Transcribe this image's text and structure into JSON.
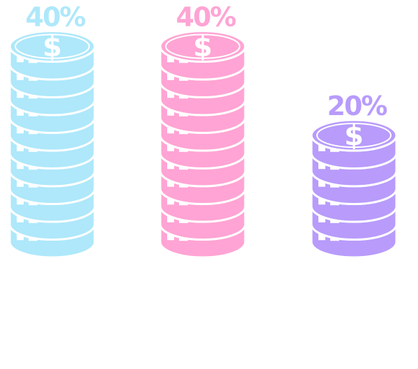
{
  "chart_data": {
    "type": "bar",
    "title": "",
    "xlabel": "",
    "ylabel": "",
    "categories": [
      "",
      "",
      ""
    ],
    "values": [
      40,
      40,
      20
    ],
    "labels": [
      "40%",
      "40%",
      "20%"
    ],
    "unit": "%",
    "ylim": [
      0,
      40
    ],
    "colors": [
      "#aee8fa",
      "#ffa4d4",
      "#b89bfb"
    ],
    "icon": "dollar-coin-stack-icon",
    "symbol": "$",
    "grid": false,
    "legend": "none"
  }
}
